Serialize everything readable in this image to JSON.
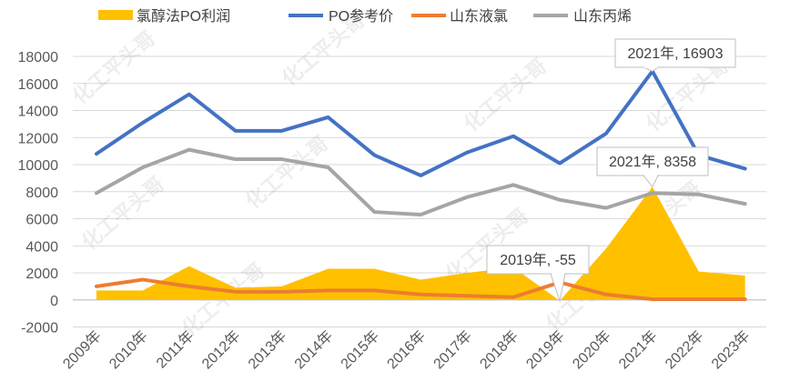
{
  "chart_data": {
    "type": "line",
    "categories": [
      "2009年",
      "2010年",
      "2011年",
      "2012年",
      "2013年",
      "2014年",
      "2015年",
      "2016年",
      "2017年",
      "2018年",
      "2019年",
      "2020年",
      "2021年",
      "2022年",
      "2023年"
    ],
    "ylim": [
      -2000,
      18000
    ],
    "yticks": [
      -2000,
      0,
      2000,
      4000,
      6000,
      8000,
      10000,
      12000,
      14000,
      16000,
      18000
    ],
    "grid": true,
    "legend_position": "top-left",
    "series": [
      {
        "name": "氯醇法PO利润",
        "type": "area",
        "color": "#FFC000",
        "values": [
          700,
          700,
          2500,
          900,
          1000,
          2300,
          2300,
          1500,
          2000,
          2400,
          -55,
          3800,
          8358,
          2100,
          1800
        ]
      },
      {
        "name": "PO参考价",
        "type": "line",
        "color": "#4472C4",
        "values": [
          10800,
          13100,
          15200,
          12500,
          12500,
          13500,
          10700,
          9200,
          10900,
          12100,
          10100,
          12300,
          16903,
          10700,
          9700
        ]
      },
      {
        "name": "山东液氯",
        "type": "line",
        "color": "#ED7D31",
        "values": [
          1000,
          1500,
          1000,
          600,
          600,
          700,
          700,
          400,
          300,
          200,
          1300,
          400,
          50,
          50,
          50
        ]
      },
      {
        "name": "山东丙烯",
        "type": "line",
        "color": "#A5A5A5",
        "values": [
          7900,
          9800,
          11100,
          10400,
          10400,
          9800,
          6500,
          6300,
          7600,
          8500,
          7400,
          6800,
          7900,
          7800,
          7100
        ]
      }
    ],
    "annotations": [
      {
        "text": "2021年, 16903",
        "category": "2021年",
        "value": 16903,
        "series": "PO参考价"
      },
      {
        "text": "2021年, 8358",
        "category": "2021年",
        "value": 8358,
        "series": "氯醇法PO利润"
      },
      {
        "text": "2019年, -55",
        "category": "2019年",
        "value": -55,
        "series": "氯醇法PO利润"
      }
    ]
  },
  "watermark": {
    "text": "化工平头哥"
  }
}
